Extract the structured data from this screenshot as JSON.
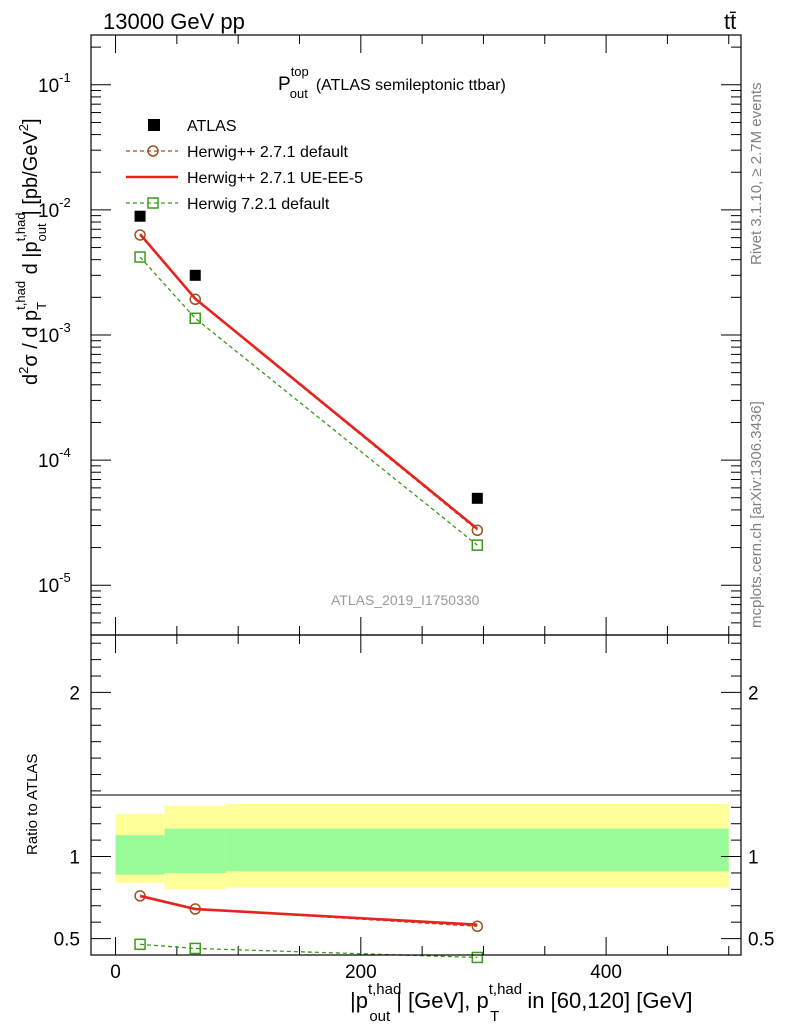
{
  "header": {
    "left": "13000 GeV pp",
    "right": "tt̄"
  },
  "side": {
    "top": "Rivet 3.1.10, ≥ 2.7M events",
    "bottom": "mcplots.cern.ch [arXiv:1306.3436]"
  },
  "plot": {
    "title": {
      "main": "P",
      "sup": "top",
      "sub": "out",
      "rest": "(ATLAS semileptonic ttbar)"
    },
    "watermark": "ATLAS_2019_I1750330",
    "ylabel_top": "d²σ / d p_T^{t,had} d |p_out^{t,had}| [pb/GeV²]",
    "ylabel_bottom": "Ratio to ATLAS",
    "xlabel": "|p_out^{t,had}| [GeV], p_T^{t,had} in [60,120] [GeV]"
  },
  "colors": {
    "atlas": "#000000",
    "herwigpp_default": "#a0521d",
    "herwigpp_ueee5": "#e8231e",
    "herwig7": "#3c9a1a",
    "band_inner": "#98fb98",
    "band_outer": "#ffff99"
  },
  "chart_data": [
    {
      "type": "scatter",
      "panel": "main",
      "y_scale": "log",
      "xlim": [
        -20,
        510
      ],
      "ylim": [
        4e-06,
        0.25
      ],
      "x_ticks": [
        0,
        200,
        400
      ],
      "y_ticks": [
        {
          "value": 1e-05,
          "label": "10",
          "exp": "-5"
        },
        {
          "value": 0.0001,
          "label": "10",
          "exp": "-4"
        },
        {
          "value": 0.001,
          "label": "10",
          "exp": "-3"
        },
        {
          "value": 0.01,
          "label": "10",
          "exp": "-2"
        },
        {
          "value": 0.1,
          "label": "10",
          "exp": "-1"
        }
      ],
      "legend_position": "top-left",
      "series": [
        {
          "name": "ATLAS",
          "key": "atlas",
          "style": "square",
          "x": [
            20,
            65,
            295
          ],
          "y": [
            0.0089,
            0.003,
            4.95e-05
          ]
        },
        {
          "name": "Herwig++ 2.7.1 default",
          "key": "herwigpp_default",
          "style": "dashed-circle",
          "x": [
            20,
            65,
            295
          ],
          "y": [
            0.0063,
            0.00193,
            2.75e-05
          ]
        },
        {
          "name": "Herwig++ 2.7.1 UE-EE-5",
          "key": "herwigpp_ueee5",
          "style": "solid",
          "x": [
            20,
            65,
            295
          ],
          "y": [
            0.0064,
            0.00195,
            2.82e-05
          ]
        },
        {
          "name": "Herwig 7.2.1 default",
          "key": "herwig7",
          "style": "dashed-square",
          "x": [
            20,
            65,
            295
          ],
          "y": [
            0.0042,
            0.00136,
            2.09e-05
          ]
        }
      ]
    },
    {
      "type": "line",
      "panel": "ratio",
      "xlim": [
        -20,
        510
      ],
      "ylim": [
        0.4,
        2.35
      ],
      "x_ticks": [
        0,
        200,
        400
      ],
      "y_ticks": [
        0.5,
        1,
        2
      ],
      "bands": [
        {
          "x0": 0,
          "x1": 40,
          "inner": [
            0.89,
            1.13
          ],
          "outer": [
            0.84,
            1.26
          ]
        },
        {
          "x0": 40,
          "x1": 90,
          "inner": [
            0.9,
            1.17
          ],
          "outer": [
            0.8,
            1.31
          ]
        },
        {
          "x0": 90,
          "x1": 500,
          "inner": [
            0.91,
            1.17
          ],
          "outer": [
            0.81,
            1.32
          ]
        }
      ],
      "series": [
        {
          "key": "herwigpp_default",
          "style": "dashed-circle",
          "x": [
            20,
            65,
            295
          ],
          "y": [
            0.76,
            0.68,
            0.575
          ]
        },
        {
          "key": "herwigpp_ueee5",
          "style": "solid",
          "x": [
            20,
            65,
            295
          ],
          "y": [
            0.76,
            0.68,
            0.585
          ]
        },
        {
          "key": "herwig7",
          "style": "dashed-square",
          "x": [
            20,
            65,
            295
          ],
          "y": [
            0.465,
            0.44,
            0.385
          ]
        }
      ]
    }
  ]
}
